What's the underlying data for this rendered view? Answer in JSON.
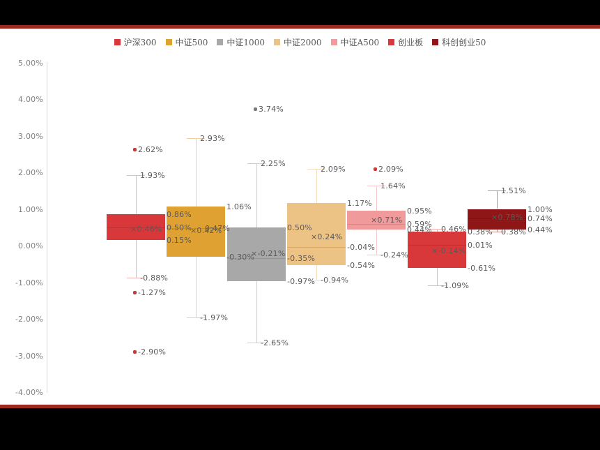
{
  "page": {
    "background": "#000000",
    "top_rule_color": "#9B2922",
    "bottom_rule_color": "#9B2922",
    "panel_color": "#FFFFFF"
  },
  "y_axis": {
    "tick_labels": [
      "5.00%",
      "4.00%",
      "3.00%",
      "2.00%",
      "1.00%",
      "0.00%",
      "-1.00%",
      "-2.00%",
      "-3.00%",
      "-4.00%"
    ],
    "text_color": "#7F7F7F",
    "axis_line_color": "#D6D6D6"
  },
  "chart_data": {
    "type": "boxplot",
    "title": "",
    "xlabel": "",
    "ylabel": "",
    "ylim": [
      -4,
      5
    ],
    "ytick_step": 1,
    "grid": false,
    "legend_position": "top",
    "value_format": "percent-2dp",
    "label_color": "#595959",
    "mean_marker": "×",
    "series": [
      {
        "name": "沪深300",
        "color": "#D8383A",
        "whisker_color": "#F0B4B4",
        "median_color": "#BE3133",
        "outlier_color": "#C8373A",
        "whisker_high": 1.93,
        "q3": 0.86,
        "median": 0.5,
        "mean": 0.46,
        "q1": 0.15,
        "whisker_low": -0.88,
        "outliers": [
          2.62,
          -1.27,
          -2.9
        ]
      },
      {
        "name": "中证500",
        "color": "#DFA232",
        "whisker_color": "#EECF9E",
        "median_color": "#C68E29",
        "outlier_color": "#DFA232",
        "whisker_high": 2.93,
        "q3": 1.06,
        "median": 0.47,
        "mean": 0.42,
        "q1": -0.3,
        "whisker_low": -1.97,
        "outliers": []
      },
      {
        "name": "中证1000",
        "color": "#A8A8A8",
        "whisker_color": "#CFCFCF",
        "median_color": "#969696",
        "outlier_color": "#7A7A7A",
        "whisker_high": 2.25,
        "q3": 0.5,
        "median": -0.35,
        "mean": -0.21,
        "q1": -0.97,
        "whisker_low": -2.65,
        "outliers": [
          3.74
        ]
      },
      {
        "name": "中证2000",
        "color": "#EDC285",
        "whisker_color": "#F5DDBB",
        "median_color": "#D9A964",
        "outlier_color": "#EDC285",
        "whisker_high": 2.09,
        "q3": 1.17,
        "median": -0.04,
        "mean": 0.24,
        "q1": -0.54,
        "whisker_low": -0.94,
        "outliers": []
      },
      {
        "name": "中证A500",
        "color": "#F09A9C",
        "whisker_color": "#F7C9CA",
        "median_color": "#E18184",
        "outlier_color": "#C8373A",
        "whisker_high": 1.64,
        "q3": 0.95,
        "median": 0.59,
        "mean": 0.71,
        "q1": 0.44,
        "whisker_low": -0.24,
        "outliers": [
          2.09
        ]
      },
      {
        "name": "创业板",
        "color": "#D8383A",
        "whisker_color": "#F0B4B4",
        "median_color": "#BE3133",
        "outlier_color": "#C8373A",
        "whisker_high": 0.46,
        "q3": 0.38,
        "median": 0.01,
        "mean": -0.14,
        "q1": -0.61,
        "whisker_low": -1.09,
        "outliers": []
      },
      {
        "name": "科创创业50",
        "color": "#8E1616",
        "whisker_color": "#C98F8F",
        "median_color": "#7A1111",
        "outlier_color": "#8E1616",
        "whisker_high": 1.51,
        "q3": 1.0,
        "median": 0.74,
        "mean": 0.78,
        "q1": 0.44,
        "whisker_low": 0.38,
        "outliers": []
      }
    ]
  }
}
